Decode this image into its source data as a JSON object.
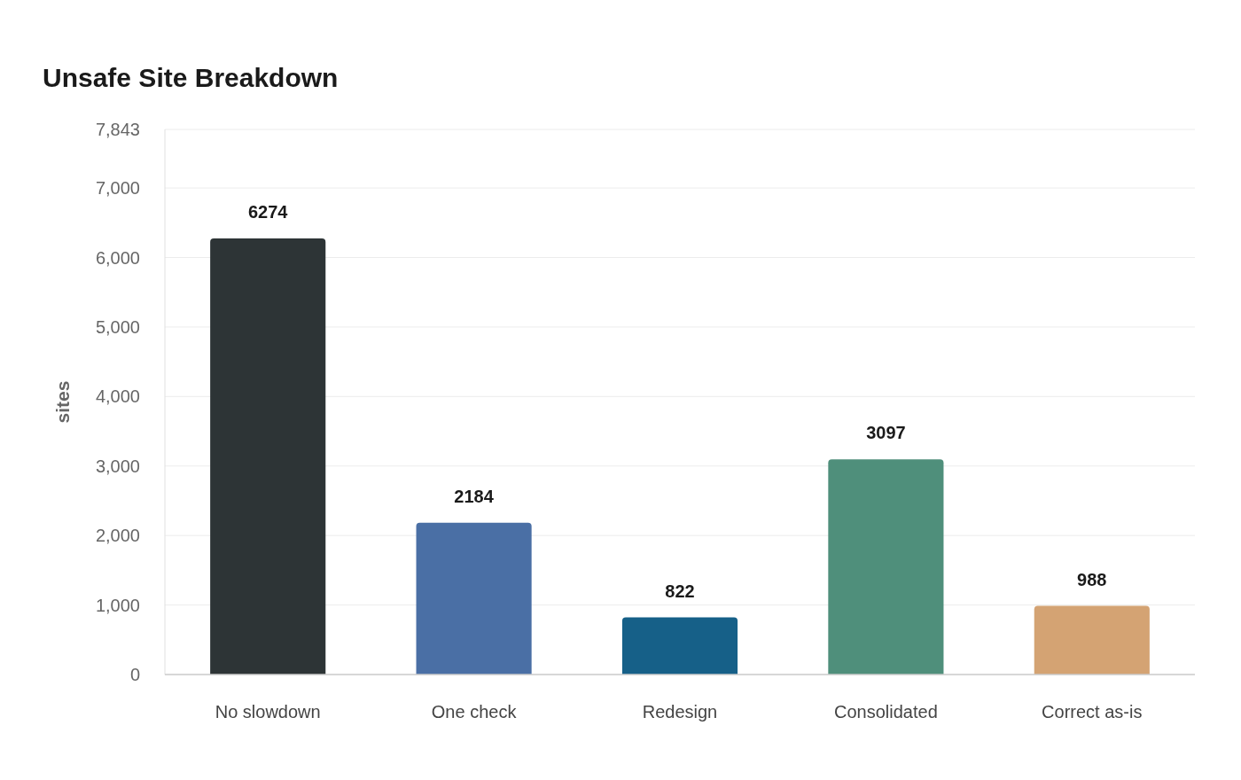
{
  "chart_data": {
    "type": "bar",
    "title": "Unsafe Site Breakdown",
    "ylabel": "sites",
    "categories": [
      "No slowdown",
      "One check",
      "Redesign",
      "Consolidated",
      "Correct as-is"
    ],
    "values": [
      6274,
      2184,
      822,
      3097,
      988
    ],
    "colors": [
      "#2d3436",
      "#4a6fa5",
      "#166088",
      "#4f8f7b",
      "#d4a373"
    ],
    "ylim": [
      0,
      7843
    ],
    "yticks": [
      0,
      {
        "value": 1000,
        "label": "1,000"
      },
      {
        "value": 2000,
        "label": "2,000"
      },
      {
        "value": 3000,
        "label": "3,000"
      },
      {
        "value": 4000,
        "label": "4,000"
      },
      {
        "value": 5000,
        "label": "5,000"
      },
      {
        "value": 6000,
        "label": "6,000"
      },
      {
        "value": 7000,
        "label": "7,000"
      },
      {
        "value": 7843,
        "label": "7,843"
      }
    ],
    "grid": "y",
    "data_labels": true
  }
}
